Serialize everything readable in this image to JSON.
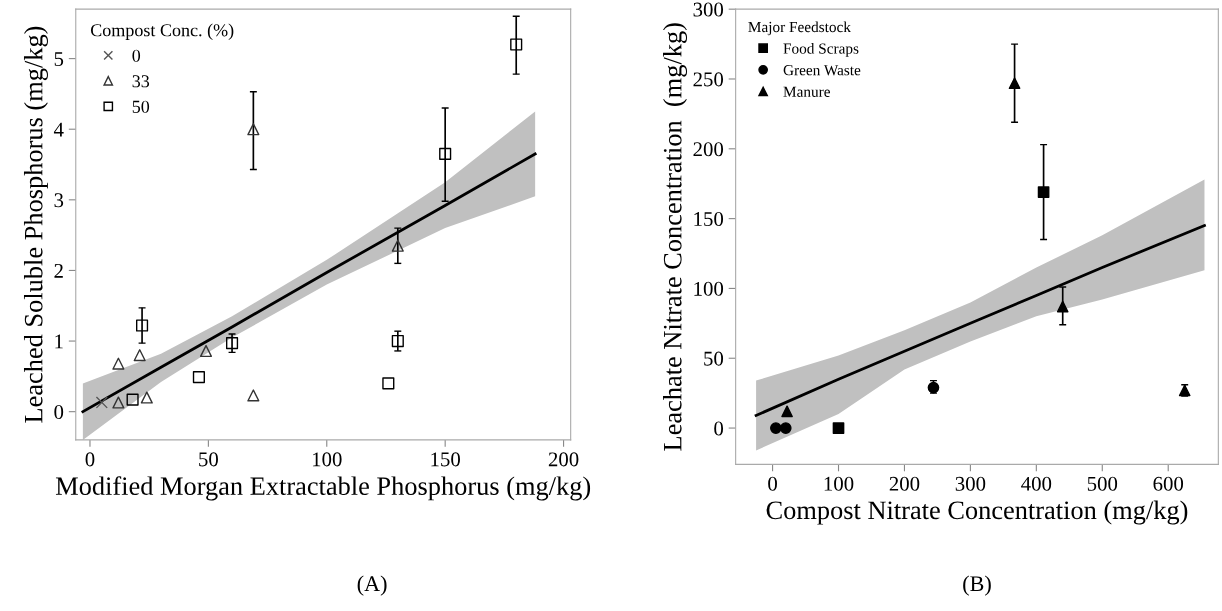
{
  "chart_data": [
    {
      "type": "scatter",
      "xlabel": "Modified Morgan Extractable Phosphorus (mg/kg)",
      "ylabel": "Leached Soluble Phosphorus (mg/kg)",
      "legend_title": "Compost Conc. (%)",
      "legend": "top left",
      "grid": false,
      "xlim": [
        -6,
        203
      ],
      "xticks": [
        0,
        50,
        100,
        150,
        200
      ],
      "ylim": [
        -0.4,
        5.7
      ],
      "yticks": [
        0,
        1,
        2,
        3,
        4,
        5
      ],
      "annotations": [
        "(A)"
      ],
      "series": [
        {
          "name": "0",
          "color": "#555555",
          "marker": "cross",
          "x": [
            5
          ],
          "values": [
            0.13
          ]
        },
        {
          "name": "33",
          "color": "#333333",
          "marker": "triangle",
          "x": [
            12,
            21,
            49,
            69,
            130,
            12,
            24,
            69
          ],
          "values": [
            0.68,
            0.8,
            0.86,
            4.0,
            2.35,
            0.13,
            0.2,
            0.23
          ],
          "errors": [
            null,
            null,
            null,
            [
              3.43,
              4.53
            ],
            [
              2.1,
              2.6
            ],
            null,
            null,
            null
          ]
        },
        {
          "name": "50",
          "color": "#000000",
          "marker": "square",
          "x": [
            22,
            46,
            60,
            130,
            126,
            150,
            180,
            18
          ],
          "values": [
            1.22,
            0.49,
            0.97,
            1.0,
            0.4,
            3.65,
            5.2,
            0.17
          ],
          "errors": [
            [
              0.97,
              1.47
            ],
            null,
            [
              0.84,
              1.1
            ],
            [
              0.86,
              1.14
            ],
            null,
            [
              2.98,
              4.3
            ],
            [
              4.78,
              5.6
            ],
            null
          ]
        },
        {
          "type": "line",
          "color": "#000000",
          "x": [
            -3,
            30,
            60,
            100,
            150,
            188
          ],
          "values": [
            0,
            0.63,
            1.2,
            1.97,
            2.92,
            3.65
          ],
          "lower": [
            -0.4,
            0.42,
            1.05,
            1.8,
            2.6,
            3.05
          ],
          "upper": [
            0.4,
            0.82,
            1.35,
            2.15,
            3.25,
            4.25
          ]
        }
      ]
    },
    {
      "type": "scatter",
      "xlabel": "Compost Nitrate Concentration (mg/kg)",
      "ylabel": "Leachate Nitrate Concentration  (mg/kg)",
      "legend_title": "Major Feedstock",
      "legend": "top left",
      "grid": false,
      "xlim": [
        -56,
        676
      ],
      "xticks": [
        0,
        100,
        200,
        300,
        400,
        500,
        600
      ],
      "ylim": [
        -26,
        300
      ],
      "yticks": [
        0,
        50,
        100,
        150,
        200,
        250,
        300
      ],
      "annotations": [
        "(B)"
      ],
      "series": [
        {
          "name": "Food Scraps",
          "color": "#000000",
          "marker": "square",
          "x": [
            100,
            411
          ],
          "values": [
            0,
            169
          ],
          "errors": [
            null,
            [
              135,
              203
            ]
          ]
        },
        {
          "name": "Green Waste",
          "color": "#000000",
          "marker": "circle",
          "x": [
            5,
            20,
            244
          ],
          "values": [
            0,
            0,
            29
          ],
          "errors": [
            null,
            null,
            [
              25,
              34
            ]
          ]
        },
        {
          "name": "Manure",
          "color": "#000000",
          "marker": "triangle",
          "x": [
            22,
            367,
            440,
            625
          ],
          "values": [
            12,
            247,
            87,
            27
          ],
          "errors": [
            null,
            [
              219,
              275
            ],
            [
              74,
              101
            ],
            [
              23,
              31
            ]
          ]
        },
        {
          "type": "line",
          "color": "#000000",
          "x": [
            -25,
            100,
            200,
            300,
            400,
            500,
            655
          ],
          "values": [
            9,
            35,
            55,
            75,
            95,
            115,
            145
          ],
          "lower": [
            -16,
            10,
            42,
            62,
            80,
            92,
            113
          ],
          "upper": [
            34,
            52,
            70,
            90,
            115,
            138,
            178
          ]
        }
      ]
    }
  ]
}
